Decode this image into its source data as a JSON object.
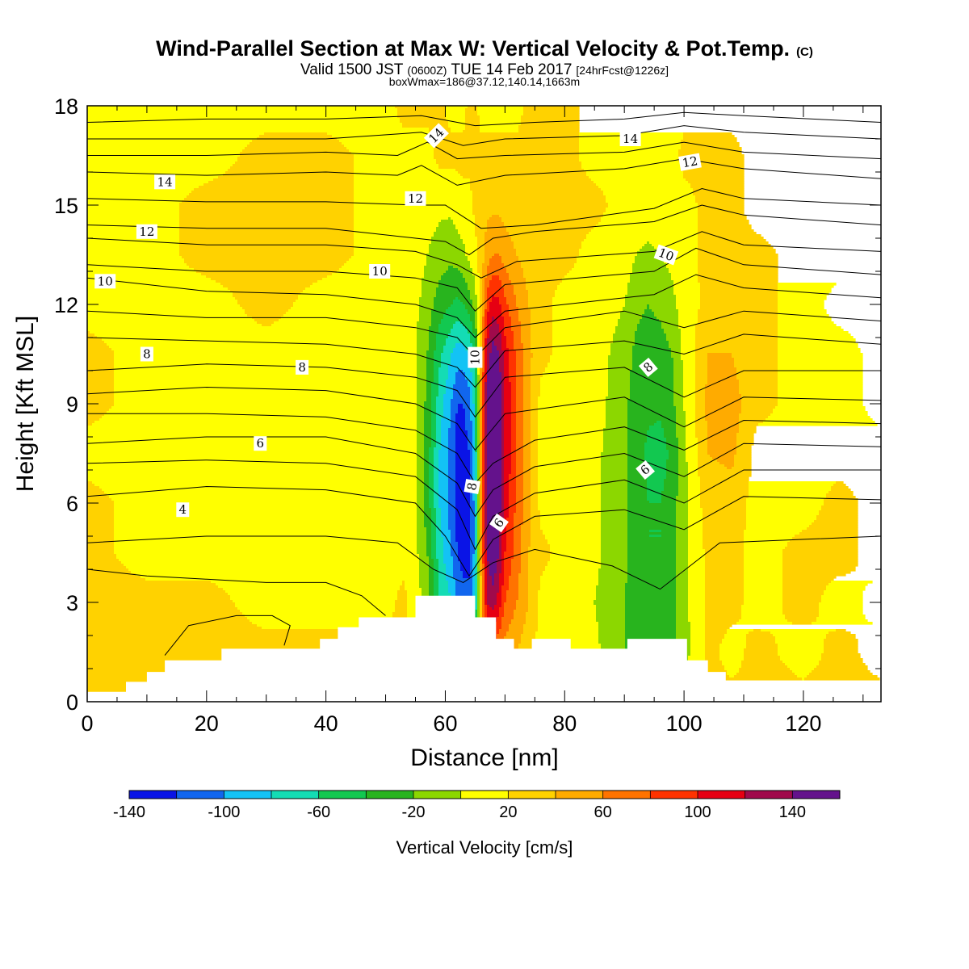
{
  "header": {
    "title": "Wind-Parallel Section at Max W: Vertical Velocity & Pot.Temp.",
    "title_mark": "(C)",
    "valid_prefix": "Valid 1500 JST",
    "valid_zone": "(0600Z)",
    "valid_date": "TUE 14 Feb 2017",
    "forecast": "[24hrFcst@1226z]",
    "box_info": "boxWmax=186@37.12,140.14,1663m"
  },
  "chart_data": {
    "type": "contour",
    "xlabel": "Distance [nm]",
    "ylabel": "Height [Kft MSL]",
    "xlim": [
      0,
      133
    ],
    "ylim": [
      0,
      18
    ],
    "x_ticks": [
      0,
      20,
      40,
      60,
      80,
      100,
      120
    ],
    "y_ticks": [
      0,
      3,
      6,
      9,
      12,
      15,
      18
    ],
    "colorbar": {
      "title": "Vertical Velocity [cm/s]",
      "tick_labels": [
        -140,
        -100,
        -60,
        -20,
        20,
        60,
        100,
        140
      ],
      "levels": [
        -160,
        -140,
        -120,
        -100,
        -80,
        -60,
        -40,
        -20,
        0,
        20,
        40,
        60,
        80,
        100,
        120,
        140,
        160
      ],
      "colors": [
        "#0a14e6",
        "#1166ee",
        "#13c3f5",
        "#14dcb4",
        "#12c850",
        "#28b41e",
        "#8cd700",
        "#ffff00",
        "#ffd200",
        "#ffab00",
        "#ff7300",
        "#ff3200",
        "#e60012",
        "#a00a4b",
        "#64128c"
      ]
    },
    "wfield": {
      "x": [
        0,
        10,
        20,
        30,
        40,
        50,
        53,
        55,
        57,
        59,
        61,
        62,
        63,
        64,
        65,
        66,
        67,
        68,
        69,
        70,
        72,
        74,
        76,
        80,
        85,
        90,
        92,
        94,
        96,
        98,
        100,
        104,
        108,
        112,
        120,
        126,
        133
      ],
      "y": [
        0,
        1.5,
        3,
        4.5,
        6,
        7.5,
        9,
        10.5,
        12,
        13.5,
        15,
        16.5,
        18
      ],
      "w": [
        [
          5,
          5,
          5,
          5,
          5,
          5,
          5,
          5,
          5,
          5,
          5,
          5,
          5,
          5,
          5,
          5,
          5,
          5,
          5,
          5,
          5,
          5,
          5,
          5,
          5,
          5,
          5,
          5,
          5,
          5,
          5,
          5,
          5,
          5,
          5,
          5,
          5
        ],
        [
          5,
          5,
          5,
          5,
          5,
          5,
          5,
          -6,
          -15,
          -40,
          -60,
          -80,
          -90,
          -100,
          -80,
          10,
          60,
          50,
          40,
          30,
          20,
          5,
          -6,
          -6,
          -15,
          -40,
          -45,
          -50,
          -50,
          -45,
          -30,
          5,
          -6,
          5,
          -6,
          5,
          -6
        ],
        [
          5,
          5,
          5,
          -6,
          -6,
          -6,
          5,
          -10,
          -30,
          -80,
          -100,
          -120,
          -130,
          -130,
          -100,
          20,
          100,
          110,
          90,
          60,
          40,
          20,
          -6,
          -6,
          -20,
          -40,
          -50,
          -55,
          -55,
          -50,
          -25,
          5,
          5,
          -6,
          5,
          -6,
          5
        ],
        [
          5,
          -6,
          -6,
          -6,
          -6,
          -6,
          -6,
          -15,
          -40,
          -90,
          -120,
          -140,
          -150,
          -150,
          -110,
          30,
          120,
          140,
          120,
          80,
          50,
          20,
          5,
          -6,
          -15,
          -35,
          -50,
          -60,
          -60,
          -50,
          -25,
          5,
          5,
          -6,
          5,
          5,
          -6
        ],
        [
          5,
          -6,
          -6,
          -6,
          -6,
          -6,
          -6,
          -20,
          -50,
          -100,
          -130,
          -150,
          -160,
          -150,
          -110,
          35,
          130,
          150,
          130,
          90,
          55,
          25,
          -6,
          -6,
          -15,
          -35,
          -50,
          -60,
          -60,
          -50,
          -25,
          10,
          10,
          -6,
          -6,
          5,
          -6
        ],
        [
          -6,
          -6,
          -6,
          -6,
          -6,
          -6,
          -6,
          -20,
          -50,
          -100,
          -130,
          -150,
          -150,
          -140,
          -100,
          35,
          140,
          160,
          140,
          100,
          60,
          25,
          -6,
          -6,
          -15,
          -35,
          -50,
          -65,
          -70,
          -55,
          -25,
          20,
          25,
          -6,
          -6,
          -6,
          -6
        ],
        [
          5,
          -6,
          -6,
          -6,
          -6,
          -6,
          -6,
          -20,
          -45,
          -90,
          -120,
          -140,
          -140,
          -130,
          -90,
          30,
          130,
          155,
          140,
          100,
          60,
          25,
          -6,
          -6,
          -10,
          -35,
          -50,
          -55,
          -55,
          -45,
          -20,
          25,
          30,
          5,
          -6,
          -6,
          5
        ],
        [
          5,
          -6,
          -6,
          -6,
          -6,
          -6,
          -6,
          -20,
          -40,
          -75,
          -100,
          -110,
          -110,
          -100,
          -70,
          25,
          110,
          130,
          120,
          90,
          55,
          25,
          5,
          -6,
          -10,
          -30,
          -45,
          -50,
          -50,
          -40,
          -15,
          20,
          20,
          5,
          -6,
          -6,
          5
        ],
        [
          -6,
          -6,
          -6,
          5,
          -6,
          -6,
          -6,
          -15,
          -30,
          -50,
          -60,
          -65,
          -60,
          -50,
          -30,
          15,
          70,
          90,
          85,
          65,
          40,
          20,
          5,
          -6,
          -6,
          -20,
          -35,
          -40,
          -35,
          -25,
          -10,
          5,
          5,
          5,
          -6,
          5,
          5
        ],
        [
          -6,
          -6,
          5,
          5,
          5,
          -6,
          -6,
          -10,
          -20,
          -30,
          -35,
          -30,
          -25,
          -15,
          -6,
          10,
          30,
          40,
          40,
          30,
          20,
          10,
          5,
          5,
          -6,
          -10,
          -20,
          -25,
          -20,
          -15,
          -6,
          5,
          5,
          5,
          -6,
          -6,
          -6
        ],
        [
          -6,
          -6,
          5,
          5,
          5,
          -6,
          -6,
          -6,
          -10,
          -15,
          -15,
          -10,
          -6,
          -6,
          5,
          10,
          15,
          15,
          15,
          12,
          8,
          5,
          5,
          5,
          5,
          -6,
          -6,
          -6,
          -6,
          -6,
          -6,
          5,
          5,
          -6,
          -6,
          -6,
          -6
        ],
        [
          -6,
          -6,
          -6,
          5,
          5,
          -6,
          -6,
          -6,
          -6,
          5,
          5,
          5,
          5,
          5,
          5,
          5,
          5,
          5,
          5,
          5,
          5,
          5,
          5,
          5,
          -6,
          -6,
          -6,
          -6,
          -6,
          -6,
          5,
          5,
          5,
          -6,
          -6,
          -6,
          -6
        ],
        [
          -6,
          -6,
          -6,
          -6,
          -6,
          -6,
          5,
          5,
          5,
          5,
          -6,
          -6,
          -6,
          5,
          5,
          -6,
          -6,
          -6,
          -6,
          -6,
          -6,
          5,
          5,
          5,
          -6,
          -6,
          -6,
          -6,
          -6,
          -6,
          -6,
          -6,
          -6,
          -6,
          -6,
          -6,
          -6
        ]
      ]
    },
    "terrain": {
      "x": [
        0,
        6.5,
        6.5,
        10,
        10,
        13,
        13,
        22.5,
        22.5,
        39,
        39,
        42,
        42,
        45.5,
        45.5,
        55,
        55,
        65,
        65,
        68.5,
        68.5,
        71.5,
        71.5,
        74.5,
        74.5,
        81,
        81,
        90.5,
        90.5,
        100.5,
        100.5,
        104,
        104,
        107,
        107,
        110,
        110,
        133
      ],
      "y": [
        0.3,
        0.3,
        0.6,
        0.6,
        0.9,
        0.9,
        1.25,
        1.25,
        1.6,
        1.6,
        1.9,
        1.9,
        2.25,
        2.25,
        2.55,
        2.55,
        3.2,
        3.2,
        2.55,
        2.55,
        1.9,
        1.9,
        1.6,
        1.6,
        1.9,
        1.9,
        1.6,
        1.6,
        1.9,
        1.9,
        1.25,
        1.25,
        0.9,
        0.9,
        0.6,
        0.6,
        0.3,
        0.3
      ]
    },
    "isentropes": [
      {
        "x": [
          0,
          20,
          40,
          56,
          65,
          75,
          90,
          100,
          110,
          133
        ],
        "y": [
          17.5,
          17.6,
          17.6,
          17.7,
          17.4,
          17.5,
          17.6,
          17.8,
          17.7,
          17.5
        ]
      },
      {
        "x": [
          0,
          20,
          40,
          56,
          63,
          70,
          90,
          100,
          110,
          133
        ],
        "y": [
          17.0,
          17.0,
          17.0,
          17.2,
          16.8,
          17.0,
          17.1,
          17.4,
          17.2,
          17.0
        ]
      },
      {
        "x": [
          0,
          20,
          40,
          52,
          57,
          62,
          70,
          90,
          100,
          110,
          133
        ],
        "y": [
          16.5,
          16.5,
          16.6,
          16.5,
          16.9,
          16.4,
          16.5,
          16.6,
          16.9,
          16.6,
          16.4
        ]
      },
      {
        "x": [
          0,
          20,
          40,
          52,
          56,
          62,
          70,
          90,
          100,
          110,
          133
        ],
        "y": [
          16.0,
          15.9,
          16.0,
          15.9,
          16.2,
          15.6,
          15.9,
          16.1,
          16.4,
          16.1,
          15.8
        ]
      },
      {
        "x": [
          0,
          20,
          40,
          55,
          60,
          66,
          75,
          95,
          103,
          110,
          133
        ],
        "y": [
          15.2,
          15.1,
          15.1,
          15.0,
          15.0,
          14.3,
          14.4,
          14.9,
          15.5,
          15.2,
          15.0
        ]
      },
      {
        "x": [
          0,
          20,
          40,
          55,
          60,
          64,
          68,
          75,
          95,
          103,
          110,
          133
        ],
        "y": [
          14.4,
          14.3,
          14.3,
          14.0,
          13.9,
          13.5,
          14.0,
          14.2,
          14.5,
          15.0,
          14.7,
          14.4
        ]
      },
      {
        "x": [
          0,
          20,
          40,
          55,
          62,
          66,
          72,
          95,
          103,
          110,
          133
        ],
        "y": [
          14.0,
          13.8,
          13.8,
          13.6,
          13.2,
          12.8,
          13.3,
          13.6,
          14.2,
          13.8,
          13.6
        ]
      },
      {
        "x": [
          0,
          20,
          40,
          55,
          62,
          65,
          70,
          95,
          102,
          110,
          133
        ],
        "y": [
          13.2,
          13.0,
          13.0,
          12.8,
          12.5,
          11.8,
          12.6,
          13.0,
          13.7,
          13.2,
          12.9
        ]
      },
      {
        "x": [
          0,
          20,
          40,
          55,
          62,
          65,
          70,
          95,
          102,
          110,
          133
        ],
        "y": [
          12.8,
          12.4,
          12.3,
          12.0,
          11.6,
          11.0,
          11.8,
          12.3,
          12.9,
          12.5,
          12.2
        ]
      },
      {
        "x": [
          0,
          20,
          40,
          55,
          62,
          65,
          70,
          90,
          100,
          110,
          133
        ],
        "y": [
          11.8,
          11.6,
          11.6,
          11.3,
          11.0,
          10.4,
          11.3,
          11.8,
          11.3,
          11.8,
          11.5
        ]
      },
      {
        "x": [
          0,
          20,
          40,
          55,
          62,
          65,
          70,
          90,
          100,
          110,
          133
        ],
        "y": [
          11.0,
          10.9,
          10.8,
          10.5,
          10.1,
          9.5,
          10.6,
          10.9,
          10.5,
          11.1,
          10.8
        ]
      },
      {
        "x": [
          0,
          20,
          40,
          55,
          62,
          65,
          70,
          90,
          100,
          110,
          133
        ],
        "y": [
          10.0,
          10.2,
          10.1,
          9.8,
          9.4,
          8.6,
          9.8,
          10.1,
          9.2,
          10.0,
          10.0
        ]
      },
      {
        "x": [
          0,
          20,
          40,
          55,
          62,
          65,
          70,
          90,
          100,
          110,
          133
        ],
        "y": [
          9.3,
          9.5,
          9.4,
          9.0,
          8.4,
          7.6,
          8.7,
          9.2,
          8.3,
          9.2,
          9.1
        ]
      },
      {
        "x": [
          0,
          20,
          40,
          55,
          62,
          65,
          68,
          75,
          90,
          100,
          110,
          133
        ],
        "y": [
          8.7,
          8.7,
          8.6,
          8.2,
          7.5,
          6.6,
          7.2,
          7.9,
          8.3,
          7.6,
          8.5,
          8.4
        ]
      },
      {
        "x": [
          0,
          20,
          40,
          55,
          62,
          65,
          68,
          75,
          90,
          100,
          110,
          133
        ],
        "y": [
          7.8,
          8.0,
          8.0,
          7.5,
          6.6,
          5.6,
          6.4,
          7.1,
          7.5,
          6.8,
          7.8,
          7.7
        ]
      },
      {
        "x": [
          0,
          20,
          40,
          55,
          62,
          65,
          68,
          75,
          90,
          100,
          110,
          133
        ],
        "y": [
          7.2,
          7.3,
          7.2,
          6.8,
          5.8,
          4.6,
          5.6,
          6.3,
          6.7,
          6.0,
          7.0,
          7.0
        ]
      },
      {
        "x": [
          0,
          20,
          40,
          55,
          60,
          64,
          68,
          75,
          90,
          100,
          110,
          133
        ],
        "y": [
          6.2,
          6.5,
          6.4,
          6.0,
          5.0,
          3.8,
          4.9,
          5.6,
          5.8,
          5.2,
          6.2,
          6.1
        ]
      },
      {
        "x": [
          0,
          20,
          40,
          52,
          58,
          63,
          68,
          75,
          88,
          96,
          106,
          133
        ],
        "y": [
          4.8,
          5.0,
          5.0,
          4.8,
          4.0,
          3.6,
          4.2,
          4.6,
          4.1,
          3.4,
          4.8,
          5.0
        ]
      },
      {
        "x": [
          0,
          10,
          20,
          30,
          40,
          46,
          50
        ],
        "y": [
          4.0,
          3.8,
          3.7,
          3.6,
          3.6,
          3.2,
          2.6
        ]
      },
      {
        "x": [
          13,
          17,
          25,
          31,
          34,
          33
        ],
        "y": [
          1.4,
          2.3,
          2.6,
          2.6,
          2.3,
          1.7
        ]
      }
    ],
    "isentrope_labels": [
      {
        "text": "14",
        "x": 13,
        "y": 15.7,
        "rot": 0
      },
      {
        "text": "12",
        "x": 10,
        "y": 14.2,
        "rot": 0
      },
      {
        "text": "10",
        "x": 3,
        "y": 12.7,
        "rot": 0
      },
      {
        "text": "8",
        "x": 10,
        "y": 10.5,
        "rot": 0
      },
      {
        "text": "8",
        "x": 36,
        "y": 10.1,
        "rot": 0
      },
      {
        "text": "6",
        "x": 29,
        "y": 7.8,
        "rot": 0
      },
      {
        "text": "4",
        "x": 16,
        "y": 5.8,
        "rot": 0
      },
      {
        "text": "10",
        "x": 49,
        "y": 13.0,
        "rot": 0
      },
      {
        "text": "12",
        "x": 55,
        "y": 15.2,
        "rot": 0
      },
      {
        "text": "14",
        "x": 58.5,
        "y": 17.1,
        "rot": -45
      },
      {
        "text": "14",
        "x": 91,
        "y": 17.0,
        "rot": 0
      },
      {
        "text": "12",
        "x": 101,
        "y": 16.3,
        "rot": -10
      },
      {
        "text": "10",
        "x": 97,
        "y": 13.5,
        "rot": 20
      },
      {
        "text": "10",
        "x": 65,
        "y": 10.4,
        "rot": -90
      },
      {
        "text": "8",
        "x": 94,
        "y": 10.1,
        "rot": -40
      },
      {
        "text": "8",
        "x": 64.5,
        "y": 6.5,
        "rot": -80
      },
      {
        "text": "6",
        "x": 93.5,
        "y": 7.0,
        "rot": -40
      },
      {
        "text": "6",
        "x": 69,
        "y": 5.4,
        "rot": -55
      }
    ]
  }
}
